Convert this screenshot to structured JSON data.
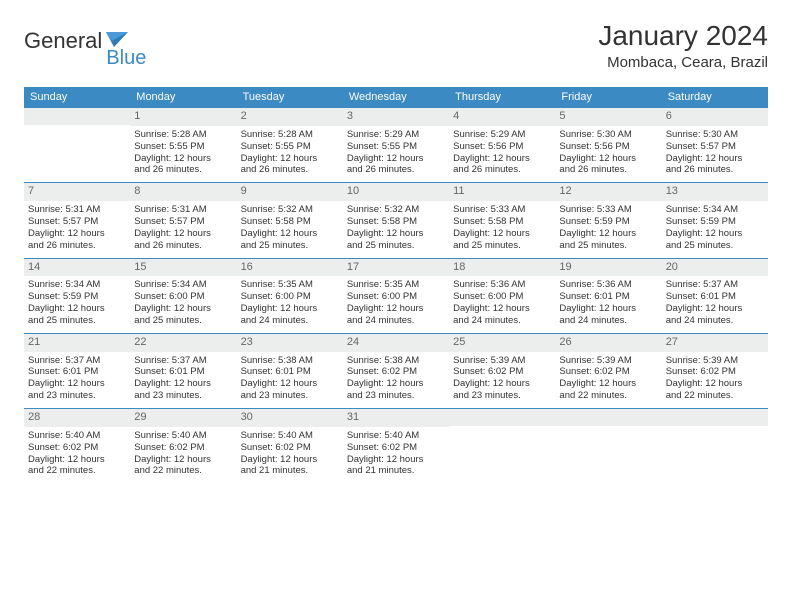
{
  "logo": {
    "word1": "General",
    "word2": "Blue"
  },
  "header": {
    "title": "January 2024",
    "location": "Mombaca, Ceara, Brazil"
  },
  "colors": {
    "accent": "#3b8ac4",
    "bg": "#ffffff",
    "date_bg": "#eceded",
    "text": "#333333"
  },
  "days": [
    "Sunday",
    "Monday",
    "Tuesday",
    "Wednesday",
    "Thursday",
    "Friday",
    "Saturday"
  ],
  "weeks": [
    [
      null,
      {
        "date": "1",
        "sunrise": "Sunrise: 5:28 AM",
        "sunset": "Sunset: 5:55 PM",
        "dl1": "Daylight: 12 hours",
        "dl2": "and 26 minutes."
      },
      {
        "date": "2",
        "sunrise": "Sunrise: 5:28 AM",
        "sunset": "Sunset: 5:55 PM",
        "dl1": "Daylight: 12 hours",
        "dl2": "and 26 minutes."
      },
      {
        "date": "3",
        "sunrise": "Sunrise: 5:29 AM",
        "sunset": "Sunset: 5:55 PM",
        "dl1": "Daylight: 12 hours",
        "dl2": "and 26 minutes."
      },
      {
        "date": "4",
        "sunrise": "Sunrise: 5:29 AM",
        "sunset": "Sunset: 5:56 PM",
        "dl1": "Daylight: 12 hours",
        "dl2": "and 26 minutes."
      },
      {
        "date": "5",
        "sunrise": "Sunrise: 5:30 AM",
        "sunset": "Sunset: 5:56 PM",
        "dl1": "Daylight: 12 hours",
        "dl2": "and 26 minutes."
      },
      {
        "date": "6",
        "sunrise": "Sunrise: 5:30 AM",
        "sunset": "Sunset: 5:57 PM",
        "dl1": "Daylight: 12 hours",
        "dl2": "and 26 minutes."
      }
    ],
    [
      {
        "date": "7",
        "sunrise": "Sunrise: 5:31 AM",
        "sunset": "Sunset: 5:57 PM",
        "dl1": "Daylight: 12 hours",
        "dl2": "and 26 minutes."
      },
      {
        "date": "8",
        "sunrise": "Sunrise: 5:31 AM",
        "sunset": "Sunset: 5:57 PM",
        "dl1": "Daylight: 12 hours",
        "dl2": "and 26 minutes."
      },
      {
        "date": "9",
        "sunrise": "Sunrise: 5:32 AM",
        "sunset": "Sunset: 5:58 PM",
        "dl1": "Daylight: 12 hours",
        "dl2": "and 25 minutes."
      },
      {
        "date": "10",
        "sunrise": "Sunrise: 5:32 AM",
        "sunset": "Sunset: 5:58 PM",
        "dl1": "Daylight: 12 hours",
        "dl2": "and 25 minutes."
      },
      {
        "date": "11",
        "sunrise": "Sunrise: 5:33 AM",
        "sunset": "Sunset: 5:58 PM",
        "dl1": "Daylight: 12 hours",
        "dl2": "and 25 minutes."
      },
      {
        "date": "12",
        "sunrise": "Sunrise: 5:33 AM",
        "sunset": "Sunset: 5:59 PM",
        "dl1": "Daylight: 12 hours",
        "dl2": "and 25 minutes."
      },
      {
        "date": "13",
        "sunrise": "Sunrise: 5:34 AM",
        "sunset": "Sunset: 5:59 PM",
        "dl1": "Daylight: 12 hours",
        "dl2": "and 25 minutes."
      }
    ],
    [
      {
        "date": "14",
        "sunrise": "Sunrise: 5:34 AM",
        "sunset": "Sunset: 5:59 PM",
        "dl1": "Daylight: 12 hours",
        "dl2": "and 25 minutes."
      },
      {
        "date": "15",
        "sunrise": "Sunrise: 5:34 AM",
        "sunset": "Sunset: 6:00 PM",
        "dl1": "Daylight: 12 hours",
        "dl2": "and 25 minutes."
      },
      {
        "date": "16",
        "sunrise": "Sunrise: 5:35 AM",
        "sunset": "Sunset: 6:00 PM",
        "dl1": "Daylight: 12 hours",
        "dl2": "and 24 minutes."
      },
      {
        "date": "17",
        "sunrise": "Sunrise: 5:35 AM",
        "sunset": "Sunset: 6:00 PM",
        "dl1": "Daylight: 12 hours",
        "dl2": "and 24 minutes."
      },
      {
        "date": "18",
        "sunrise": "Sunrise: 5:36 AM",
        "sunset": "Sunset: 6:00 PM",
        "dl1": "Daylight: 12 hours",
        "dl2": "and 24 minutes."
      },
      {
        "date": "19",
        "sunrise": "Sunrise: 5:36 AM",
        "sunset": "Sunset: 6:01 PM",
        "dl1": "Daylight: 12 hours",
        "dl2": "and 24 minutes."
      },
      {
        "date": "20",
        "sunrise": "Sunrise: 5:37 AM",
        "sunset": "Sunset: 6:01 PM",
        "dl1": "Daylight: 12 hours",
        "dl2": "and 24 minutes."
      }
    ],
    [
      {
        "date": "21",
        "sunrise": "Sunrise: 5:37 AM",
        "sunset": "Sunset: 6:01 PM",
        "dl1": "Daylight: 12 hours",
        "dl2": "and 23 minutes."
      },
      {
        "date": "22",
        "sunrise": "Sunrise: 5:37 AM",
        "sunset": "Sunset: 6:01 PM",
        "dl1": "Daylight: 12 hours",
        "dl2": "and 23 minutes."
      },
      {
        "date": "23",
        "sunrise": "Sunrise: 5:38 AM",
        "sunset": "Sunset: 6:01 PM",
        "dl1": "Daylight: 12 hours",
        "dl2": "and 23 minutes."
      },
      {
        "date": "24",
        "sunrise": "Sunrise: 5:38 AM",
        "sunset": "Sunset: 6:02 PM",
        "dl1": "Daylight: 12 hours",
        "dl2": "and 23 minutes."
      },
      {
        "date": "25",
        "sunrise": "Sunrise: 5:39 AM",
        "sunset": "Sunset: 6:02 PM",
        "dl1": "Daylight: 12 hours",
        "dl2": "and 23 minutes."
      },
      {
        "date": "26",
        "sunrise": "Sunrise: 5:39 AM",
        "sunset": "Sunset: 6:02 PM",
        "dl1": "Daylight: 12 hours",
        "dl2": "and 22 minutes."
      },
      {
        "date": "27",
        "sunrise": "Sunrise: 5:39 AM",
        "sunset": "Sunset: 6:02 PM",
        "dl1": "Daylight: 12 hours",
        "dl2": "and 22 minutes."
      }
    ],
    [
      {
        "date": "28",
        "sunrise": "Sunrise: 5:40 AM",
        "sunset": "Sunset: 6:02 PM",
        "dl1": "Daylight: 12 hours",
        "dl2": "and 22 minutes."
      },
      {
        "date": "29",
        "sunrise": "Sunrise: 5:40 AM",
        "sunset": "Sunset: 6:02 PM",
        "dl1": "Daylight: 12 hours",
        "dl2": "and 22 minutes."
      },
      {
        "date": "30",
        "sunrise": "Sunrise: 5:40 AM",
        "sunset": "Sunset: 6:02 PM",
        "dl1": "Daylight: 12 hours",
        "dl2": "and 21 minutes."
      },
      {
        "date": "31",
        "sunrise": "Sunrise: 5:40 AM",
        "sunset": "Sunset: 6:02 PM",
        "dl1": "Daylight: 12 hours",
        "dl2": "and 21 minutes."
      },
      null,
      null,
      null
    ]
  ]
}
